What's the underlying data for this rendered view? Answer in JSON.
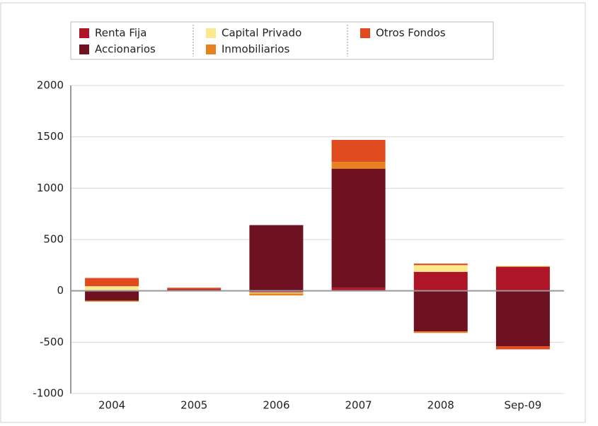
{
  "chart_data": {
    "type": "stacked-bar",
    "categories": [
      "2004",
      "2005",
      "2006",
      "2007",
      "2008",
      "Sep-09"
    ],
    "series": [
      {
        "name": "Renta Fija",
        "color": "#ae1628",
        "values": [
          0,
          15,
          -15,
          30,
          185,
          235
        ]
      },
      {
        "name": "Accionarios",
        "color": "#6e1120",
        "values": [
          -95,
          -5,
          640,
          1160,
          -395,
          -540
        ]
      },
      {
        "name": "Capital Privado",
        "color": "#fbe98e",
        "values": [
          45,
          0,
          -10,
          0,
          65,
          10
        ]
      },
      {
        "name": "Inmobiliarios",
        "color": "#e8821e",
        "values": [
          -10,
          0,
          -20,
          65,
          -15,
          0
        ]
      },
      {
        "name": "Otros Fondos",
        "color": "#e04a1f",
        "values": [
          80,
          15,
          0,
          215,
          15,
          -30
        ]
      }
    ],
    "ylim": [
      -1000,
      2000
    ],
    "yticks": [
      -1000,
      -500,
      0,
      500,
      1000,
      1500,
      2000
    ],
    "grid": true
  }
}
